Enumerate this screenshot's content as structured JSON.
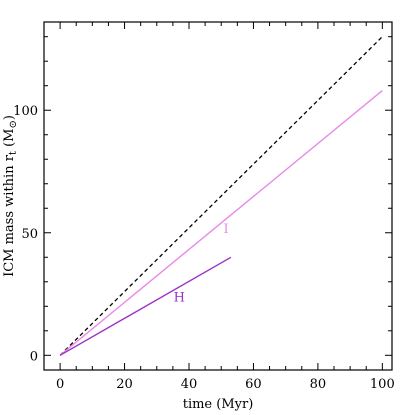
{
  "chart_data": {
    "type": "line",
    "xlabel": "time (Myr)",
    "ylabel": "ICM mass within r_t (M_⊙)",
    "ylabel_parts": {
      "main": "ICM mass within r",
      "sub": "t",
      "unit_open": " (M",
      "unit_sub": "⊙",
      "unit_close": ")"
    },
    "xlim": [
      -5,
      103
    ],
    "ylim": [
      -6,
      136
    ],
    "x_ticks": [
      0,
      20,
      40,
      60,
      80,
      100
    ],
    "y_ticks": [
      0,
      50,
      100
    ],
    "x_tick_labels": [
      "0",
      "20",
      "40",
      "60",
      "80",
      "100"
    ],
    "y_tick_labels": [
      "0",
      "50",
      "100"
    ],
    "x_minor_step": 5,
    "y_minor_step": 10,
    "grid": false,
    "series": [
      {
        "id": "reference",
        "style": "dashed",
        "color": "#000000",
        "x": [
          0,
          100
        ],
        "y": [
          0,
          130
        ]
      },
      {
        "id": "I",
        "name": "I",
        "style": "solid",
        "color": "#e88ae6",
        "x": [
          0,
          100
        ],
        "y": [
          0,
          108
        ]
      },
      {
        "id": "H",
        "name": "H",
        "style": "solid",
        "color": "#9b30c8",
        "x": [
          0,
          53
        ],
        "y": [
          0,
          40
        ]
      }
    ],
    "annotations": [
      {
        "text": "I",
        "x": 51.5,
        "y": 50,
        "color": "#e88ae6"
      },
      {
        "text": "H",
        "x": 37,
        "y": 22,
        "color": "#9b30c8"
      }
    ]
  }
}
